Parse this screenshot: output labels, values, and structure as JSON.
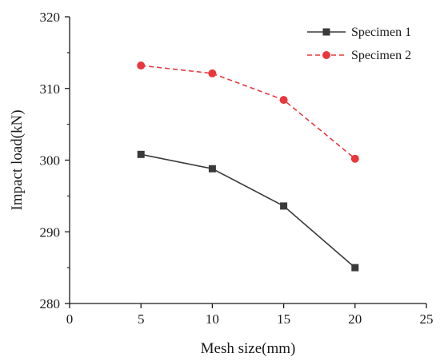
{
  "chart_data": {
    "type": "line",
    "x": [
      5,
      10,
      15,
      20
    ],
    "series": [
      {
        "name": "Specimen 1",
        "values": [
          300.8,
          298.8,
          293.6,
          285.0
        ],
        "color": "#3a3a3a",
        "marker": "square",
        "line_style": "solid"
      },
      {
        "name": "Specimen 2",
        "values": [
          313.2,
          312.1,
          308.4,
          300.2
        ],
        "color": "#e8383d",
        "marker": "circle",
        "line_style": "dashed"
      }
    ],
    "title": "",
    "xlabel": "Mesh size(mm)",
    "ylabel": "Impact load(kN)",
    "xlim": [
      0,
      25
    ],
    "ylim": [
      280,
      320
    ],
    "xticks": [
      "0",
      "5",
      "10",
      "15",
      "20",
      "25"
    ],
    "yticks": [
      "280",
      "290",
      "300",
      "310",
      "320"
    ],
    "grid": false,
    "legend_position": "top-right"
  }
}
